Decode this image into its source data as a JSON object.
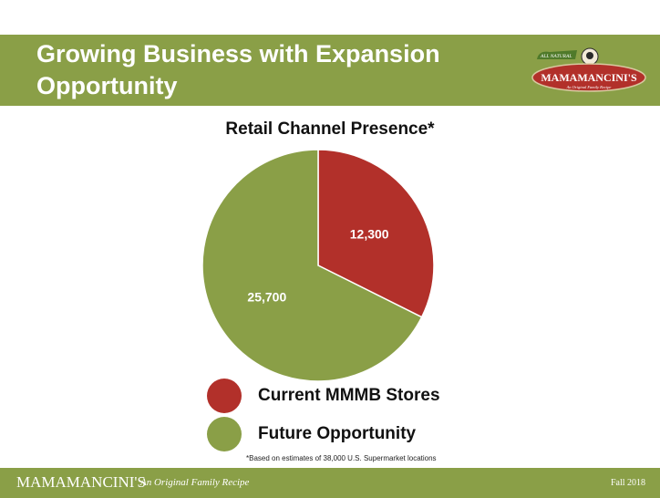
{
  "header": {
    "title_line1": "Growing Business with Expansion",
    "title_line2": "Opportunity"
  },
  "logo": {
    "ribbon": "ALL NATURAL",
    "brand": "MAMAMANCINI'S",
    "tagline": "An Original Family Recipe"
  },
  "chart_data": {
    "type": "pie",
    "title": "Retail Channel Presence*",
    "slices": [
      {
        "label": "Current MMMB Stores",
        "value": 12300,
        "display": "12,300",
        "color": "#b2302a"
      },
      {
        "label": "Future Opportunity",
        "value": 25700,
        "display": "25,700",
        "color": "#8a9f47"
      }
    ],
    "legend": "bottom",
    "start_angle_deg": 0,
    "direction": "clockwise"
  },
  "footnote": "*Based on estimates of 38,000 U.S. Supermarket locations",
  "footer": {
    "brand": "MAMAMANCINI'S",
    "tagline": "An Original Family Recipe",
    "date": "Fall 2018"
  },
  "colors": {
    "accent_green": "#8a9f47",
    "accent_red": "#b2302a",
    "white": "#ffffff"
  }
}
